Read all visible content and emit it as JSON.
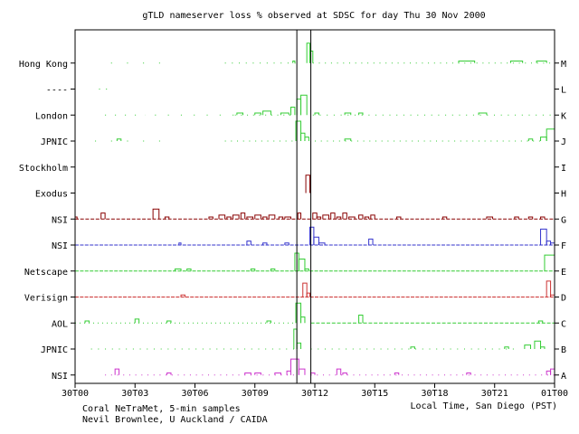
{
  "chart_data": {
    "type": "line",
    "title": "gTLD nameserver loss % observed at SDSC for day Thu 30 Nov 2000",
    "xlabel": "Local Time, San Diego (PST)",
    "credits": [
      "Coral NeTraMet, 5-min samples",
      "Nevil Brownlee, U Auckland / CAIDA"
    ],
    "x_ticks": [
      "30T00",
      "30T03",
      "30T06",
      "30T09",
      "30T12",
      "30T15",
      "30T18",
      "30T21",
      "01T00"
    ],
    "x_range_hours": [
      0,
      24
    ],
    "markers_hours": [
      11.1,
      11.8
    ],
    "colors": {
      "green": "#33cc33",
      "darkred": "#880000",
      "blue": "#3333cc",
      "red": "#cc3333",
      "magenta": "#cc33cc",
      "axis": "#000000"
    },
    "series": [
      {
        "name": "Hong Kong",
        "server": "M",
        "color": "green",
        "baseline": 0,
        "dots": [
          [
            1.8,
            4.5,
            0.12
          ],
          [
            7.5,
            11.1,
            0.3
          ],
          [
            11.9,
            24,
            0.35
          ]
        ],
        "events": [
          [
            10.9,
            11.0,
            1
          ],
          [
            11.6,
            11.75,
            10
          ],
          [
            11.75,
            11.9,
            6
          ],
          [
            19.2,
            20.0,
            1
          ],
          [
            21.8,
            22.4,
            1
          ],
          [
            23.1,
            23.6,
            1
          ]
        ]
      },
      {
        "name": "----",
        "server": "L",
        "color": "green",
        "baseline": 0,
        "dots": [
          [
            1.2,
            1.7,
            0.3
          ]
        ],
        "events": []
      },
      {
        "name": "London",
        "server": "K",
        "color": "green",
        "baseline": 0,
        "dots": [
          [
            1.5,
            3.5,
            0.2
          ],
          [
            4.0,
            8.0,
            0.15
          ],
          [
            8.0,
            11.0,
            0.35
          ],
          [
            11.9,
            24,
            0.3
          ]
        ],
        "events": [
          [
            8.1,
            8.4,
            1
          ],
          [
            9.0,
            9.3,
            1
          ],
          [
            9.4,
            9.8,
            2
          ],
          [
            10.3,
            10.7,
            1
          ],
          [
            10.8,
            11.0,
            4
          ],
          [
            11.1,
            11.3,
            8
          ],
          [
            11.3,
            11.6,
            10
          ],
          [
            12.0,
            12.2,
            1
          ],
          [
            13.5,
            13.8,
            1
          ],
          [
            14.2,
            14.4,
            1
          ],
          [
            20.2,
            20.6,
            1
          ]
        ]
      },
      {
        "name": "JPNIC",
        "server": "J",
        "color": "green",
        "baseline": 0,
        "dots": [
          [
            1.0,
            5.0,
            0.12
          ],
          [
            7.5,
            11.0,
            0.35
          ],
          [
            12.0,
            23.5,
            0.35
          ]
        ],
        "events": [
          [
            2.1,
            2.3,
            1
          ],
          [
            11.05,
            11.3,
            10
          ],
          [
            11.3,
            11.5,
            4
          ],
          [
            11.5,
            11.7,
            2
          ],
          [
            13.5,
            13.8,
            1
          ],
          [
            22.7,
            22.9,
            1
          ],
          [
            23.3,
            23.6,
            2
          ],
          [
            23.6,
            24,
            6
          ]
        ]
      },
      {
        "name": "Stockholm",
        "server": "I",
        "color": "green",
        "baseline": 0,
        "dots": [],
        "events": []
      },
      {
        "name": "Exodus",
        "server": "H",
        "color": "darkred",
        "baseline": 0,
        "dots": [],
        "events": [
          [
            11.55,
            11.75,
            9
          ]
        ]
      },
      {
        "name": "NSI",
        "server": "G",
        "color": "darkred",
        "baseline": 0,
        "dots": [
          [
            0,
            24,
            0.6
          ]
        ],
        "events": [
          [
            0,
            0.1,
            1
          ],
          [
            1.3,
            1.5,
            3
          ],
          [
            3.9,
            4.2,
            5
          ],
          [
            4.5,
            4.7,
            1
          ],
          [
            6.7,
            6.9,
            1
          ],
          [
            7.2,
            7.5,
            2
          ],
          [
            7.6,
            7.8,
            1
          ],
          [
            7.9,
            8.2,
            2
          ],
          [
            8.3,
            8.5,
            3
          ],
          [
            8.6,
            8.9,
            1
          ],
          [
            9.0,
            9.3,
            2
          ],
          [
            9.4,
            9.6,
            1
          ],
          [
            9.7,
            10.0,
            2
          ],
          [
            10.2,
            10.4,
            1
          ],
          [
            10.5,
            10.8,
            1
          ],
          [
            11.15,
            11.3,
            3
          ],
          [
            11.9,
            12.1,
            3
          ],
          [
            12.1,
            12.3,
            1
          ],
          [
            12.4,
            12.7,
            2
          ],
          [
            12.8,
            13.0,
            3
          ],
          [
            13.1,
            13.3,
            1
          ],
          [
            13.4,
            13.6,
            3
          ],
          [
            13.7,
            14.0,
            1
          ],
          [
            14.2,
            14.4,
            2
          ],
          [
            14.5,
            14.7,
            1
          ],
          [
            14.8,
            15.0,
            2
          ],
          [
            16.1,
            16.3,
            1
          ],
          [
            18.4,
            18.6,
            1
          ],
          [
            20.6,
            20.9,
            1
          ],
          [
            22.0,
            22.2,
            1
          ],
          [
            22.7,
            22.9,
            1
          ],
          [
            23.3,
            23.5,
            1
          ]
        ]
      },
      {
        "name": "NSI",
        "server": "F",
        "color": "blue",
        "baseline": 0,
        "dots": [
          [
            0,
            24,
            0.7
          ]
        ],
        "events": [
          [
            5.2,
            5.3,
            1
          ],
          [
            8.6,
            8.8,
            2
          ],
          [
            9.4,
            9.6,
            1
          ],
          [
            10.5,
            10.7,
            1
          ],
          [
            11.75,
            11.95,
            9
          ],
          [
            11.95,
            12.2,
            4
          ],
          [
            12.2,
            12.5,
            1
          ],
          [
            14.7,
            14.9,
            3
          ],
          [
            23.3,
            23.6,
            8
          ],
          [
            23.6,
            23.8,
            2
          ],
          [
            23.8,
            24,
            1
          ]
        ]
      },
      {
        "name": "Netscape",
        "server": "E",
        "color": "green",
        "baseline": 0,
        "dots": [
          [
            0,
            24,
            0.7
          ]
        ],
        "events": [
          [
            5.0,
            5.3,
            1
          ],
          [
            5.6,
            5.8,
            1
          ],
          [
            8.8,
            9.0,
            1
          ],
          [
            9.8,
            10.0,
            1
          ],
          [
            11.0,
            11.2,
            9
          ],
          [
            11.2,
            11.5,
            6
          ],
          [
            11.5,
            11.7,
            1
          ],
          [
            23.5,
            24,
            8
          ]
        ]
      },
      {
        "name": "Verisign",
        "server": "D",
        "color": "red",
        "baseline": 0,
        "dots": [
          [
            0,
            24,
            0.75
          ]
        ],
        "events": [
          [
            5.3,
            5.5,
            1
          ],
          [
            11.4,
            11.6,
            7
          ],
          [
            11.6,
            11.75,
            2
          ],
          [
            23.6,
            23.8,
            8
          ],
          [
            23.8,
            24,
            1
          ]
        ]
      },
      {
        "name": "AOL",
        "server": "C",
        "color": "green",
        "baseline": 0,
        "dots": [
          [
            0,
            11.1,
            0.5
          ],
          [
            11.8,
            24,
            0.55
          ]
        ],
        "events": [
          [
            0.5,
            0.7,
            1
          ],
          [
            3.0,
            3.2,
            2
          ],
          [
            4.6,
            4.8,
            1
          ],
          [
            9.6,
            9.8,
            1
          ],
          [
            11.05,
            11.3,
            10
          ],
          [
            11.3,
            11.5,
            3
          ],
          [
            14.2,
            14.4,
            4
          ],
          [
            23.2,
            23.4,
            1
          ]
        ]
      },
      {
        "name": "JPNIC",
        "server": "B",
        "color": "green",
        "baseline": 0,
        "dots": [
          [
            0.8,
            11.0,
            0.3
          ],
          [
            11.8,
            22.0,
            0.3
          ]
        ],
        "events": [
          [
            10.95,
            11.1,
            10
          ],
          [
            11.1,
            11.3,
            3
          ],
          [
            16.8,
            17.0,
            1
          ],
          [
            21.5,
            21.7,
            1
          ],
          [
            22.5,
            22.8,
            2
          ],
          [
            23.0,
            23.3,
            4
          ],
          [
            23.3,
            23.5,
            1
          ]
        ]
      },
      {
        "name": "NSI",
        "server": "A",
        "color": "magenta",
        "baseline": 0,
        "dots": [
          [
            1.5,
            11.0,
            0.35
          ],
          [
            11.8,
            24,
            0.35
          ]
        ],
        "events": [
          [
            2.0,
            2.2,
            3
          ],
          [
            4.6,
            4.8,
            1
          ],
          [
            8.5,
            8.8,
            1
          ],
          [
            9.0,
            9.3,
            1
          ],
          [
            10.0,
            10.3,
            1
          ],
          [
            10.6,
            10.8,
            2
          ],
          [
            10.8,
            11.2,
            8
          ],
          [
            11.2,
            11.5,
            3
          ],
          [
            11.8,
            12.0,
            1
          ],
          [
            13.1,
            13.3,
            3
          ],
          [
            13.4,
            13.6,
            1
          ],
          [
            16.0,
            16.2,
            1
          ],
          [
            19.6,
            19.8,
            1
          ],
          [
            23.6,
            23.8,
            2
          ],
          [
            23.8,
            24,
            3
          ]
        ]
      }
    ]
  }
}
